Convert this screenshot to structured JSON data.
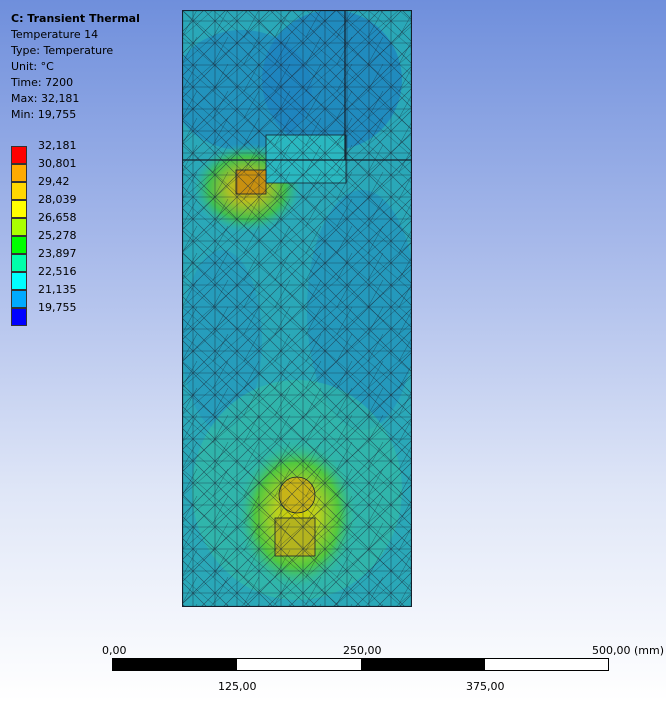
{
  "info": {
    "title": "C: Transient Thermal",
    "result_name": "Temperature 14",
    "type": "Type: Temperature",
    "unit": "Unit: °C",
    "time": "Time: 7200",
    "max": "Max: 32,181",
    "min": "Min: 19,755"
  },
  "legend": {
    "labels": [
      "32,181",
      "30,801",
      "29,42",
      "28,039",
      "26,658",
      "25,278",
      "23,897",
      "22,516",
      "21,135",
      "19,755"
    ],
    "colors": [
      "#ff0000",
      "#ffaa00",
      "#ffd700",
      "#ffff00",
      "#aaff00",
      "#00ff00",
      "#00ffaa",
      "#00ffff",
      "#00aaff",
      "#0000ff"
    ]
  },
  "scale": {
    "top_labels": [
      "0,00",
      "250,00",
      "500,00 (mm)"
    ],
    "bottom_labels": [
      "125,00",
      "375,00"
    ]
  }
}
